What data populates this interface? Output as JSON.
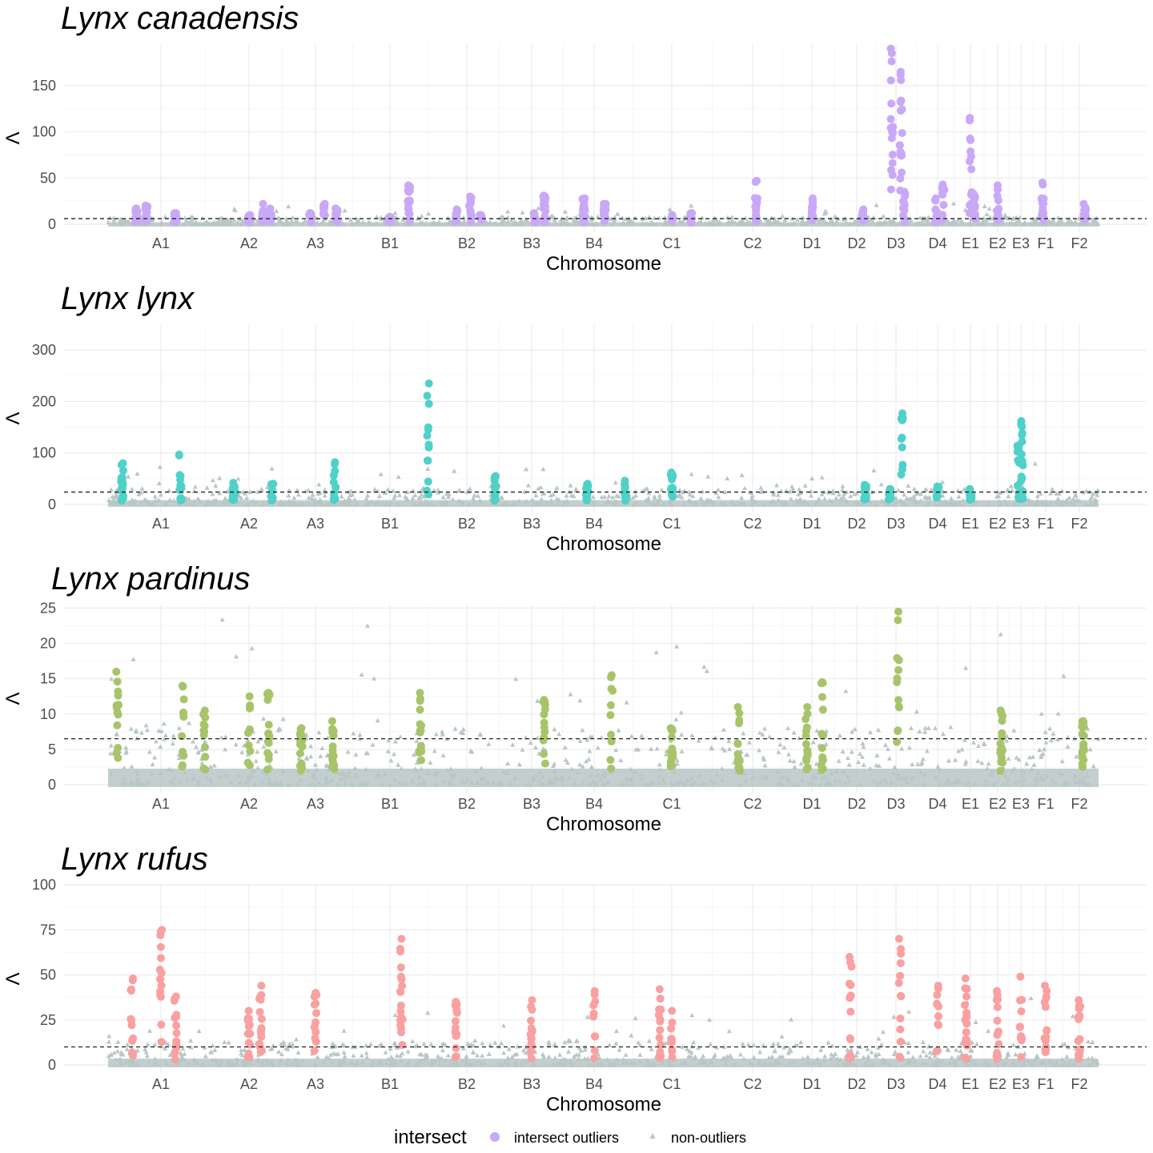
{
  "chart_data": [
    {
      "type": "scatter",
      "title": "Lynx canadensis",
      "xlabel": "Chromosome",
      "ylabel": "Λ",
      "ylim": [
        0,
        195
      ],
      "yticks": [
        0,
        50,
        100,
        150
      ],
      "threshold": 6,
      "outlier_color": "#c9a8f7",
      "categories": [
        "A1",
        "A2",
        "A3",
        "B1",
        "B2",
        "B3",
        "B4",
        "C1",
        "C2",
        "D1",
        "D2",
        "D3",
        "D4",
        "E1",
        "E2",
        "E3",
        "F1",
        "F2"
      ],
      "peaks": [
        {
          "chrom": "A1",
          "pos": -0.5,
          "max": 17
        },
        {
          "chrom": "A1",
          "pos": -0.3,
          "max": 20
        },
        {
          "chrom": "A1",
          "pos": 0.3,
          "max": 12
        },
        {
          "chrom": "A2",
          "pos": 0,
          "max": 10
        },
        {
          "chrom": "A2",
          "pos": 0.35,
          "max": 22
        },
        {
          "chrom": "A2",
          "pos": 0.55,
          "max": 17
        },
        {
          "chrom": "A3",
          "pos": -0.15,
          "max": 12
        },
        {
          "chrom": "A3",
          "pos": 0.25,
          "max": 22
        },
        {
          "chrom": "A3",
          "pos": 0.6,
          "max": 17
        },
        {
          "chrom": "B1",
          "pos": 0,
          "max": 8
        },
        {
          "chrom": "B1",
          "pos": 0.5,
          "max": 42
        },
        {
          "chrom": "B2",
          "pos": -0.3,
          "max": 16
        },
        {
          "chrom": "B2",
          "pos": 0.1,
          "max": 30
        },
        {
          "chrom": "B2",
          "pos": 0.4,
          "max": 10
        },
        {
          "chrom": "B3",
          "pos": 0.1,
          "max": 12
        },
        {
          "chrom": "B3",
          "pos": 0.4,
          "max": 31
        },
        {
          "chrom": "B4",
          "pos": -0.3,
          "max": 28
        },
        {
          "chrom": "B4",
          "pos": 0.3,
          "max": 22
        },
        {
          "chrom": "C1",
          "pos": 0,
          "max": 10
        },
        {
          "chrom": "C1",
          "pos": 0.5,
          "max": 12
        },
        {
          "chrom": "C2",
          "pos": 0.1,
          "max": 47
        },
        {
          "chrom": "D1",
          "pos": 0,
          "max": 28
        },
        {
          "chrom": "D2",
          "pos": 0.3,
          "max": 16
        },
        {
          "chrom": "D3",
          "pos": -0.2,
          "max": 190
        },
        {
          "chrom": "D3",
          "pos": 0.25,
          "max": 165
        },
        {
          "chrom": "D3",
          "pos": 0.4,
          "max": 35
        },
        {
          "chrom": "D4",
          "pos": -0.1,
          "max": 28
        },
        {
          "chrom": "D4",
          "pos": 0.3,
          "max": 43
        },
        {
          "chrom": "E1",
          "pos": 0,
          "max": 115
        },
        {
          "chrom": "E1",
          "pos": 0.25,
          "max": 33
        },
        {
          "chrom": "E2",
          "pos": 0,
          "max": 42
        },
        {
          "chrom": "F1",
          "pos": -0.2,
          "max": 45
        },
        {
          "chrom": "F2",
          "pos": 0.3,
          "max": 22
        }
      ]
    },
    {
      "type": "scatter",
      "title": "Lynx lynx",
      "xlabel": "Chromosome",
      "ylabel": "Λ",
      "ylim": [
        0,
        350
      ],
      "yticks": [
        0,
        100,
        200,
        300
      ],
      "threshold": 24,
      "outlier_color": "#4fd1c9",
      "categories": [
        "A1",
        "A2",
        "A3",
        "B1",
        "B2",
        "B3",
        "B4",
        "C1",
        "C2",
        "D1",
        "D2",
        "D3",
        "D4",
        "E1",
        "E2",
        "E3",
        "F1",
        "F2"
      ],
      "peaks": [
        {
          "chrom": "A1",
          "pos": -0.8,
          "max": 80
        },
        {
          "chrom": "A1",
          "pos": 0.4,
          "max": 97
        },
        {
          "chrom": "A2",
          "pos": -0.4,
          "max": 42
        },
        {
          "chrom": "A2",
          "pos": 0.6,
          "max": 40
        },
        {
          "chrom": "A3",
          "pos": 0.55,
          "max": 82
        },
        {
          "chrom": "B1",
          "pos": 1.0,
          "max": 235
        },
        {
          "chrom": "B2",
          "pos": 0.8,
          "max": 55
        },
        {
          "chrom": "B4",
          "pos": -0.2,
          "max": 40
        },
        {
          "chrom": "B4",
          "pos": 0.9,
          "max": 46
        },
        {
          "chrom": "C1",
          "pos": 0,
          "max": 62
        },
        {
          "chrom": "D2",
          "pos": 0.4,
          "max": 38
        },
        {
          "chrom": "D3",
          "pos": -0.3,
          "max": 30
        },
        {
          "chrom": "D3",
          "pos": 0.3,
          "max": 177
        },
        {
          "chrom": "D4",
          "pos": 0,
          "max": 35
        },
        {
          "chrom": "E1",
          "pos": 0,
          "max": 30
        },
        {
          "chrom": "E3",
          "pos": -0.2,
          "max": 115
        },
        {
          "chrom": "E3",
          "pos": 0.1,
          "max": 162
        }
      ]
    },
    {
      "type": "scatter",
      "title": "Lynx pardinus",
      "xlabel": "Chromosome",
      "ylabel": "Λ",
      "ylim": [
        0,
        25.5
      ],
      "yticks": [
        0,
        5,
        10,
        15,
        20,
        25
      ],
      "threshold": 6.5,
      "outlier_color": "#a8c46b",
      "categories": [
        "A1",
        "A2",
        "A3",
        "B1",
        "B2",
        "B3",
        "B4",
        "C1",
        "C2",
        "D1",
        "D2",
        "D3",
        "D4",
        "E1",
        "E2",
        "E3",
        "F1",
        "F2"
      ],
      "peaks": [
        {
          "chrom": "A1",
          "pos": -0.9,
          "max": 16
        },
        {
          "chrom": "A1",
          "pos": 0.45,
          "max": 14
        },
        {
          "chrom": "A1",
          "pos": 0.9,
          "max": 10.5
        },
        {
          "chrom": "A2",
          "pos": 0,
          "max": 12.5
        },
        {
          "chrom": "A2",
          "pos": 0.5,
          "max": 13
        },
        {
          "chrom": "A3",
          "pos": -0.4,
          "max": 8
        },
        {
          "chrom": "A3",
          "pos": 0.5,
          "max": 9
        },
        {
          "chrom": "B1",
          "pos": 0.8,
          "max": 13
        },
        {
          "chrom": "B3",
          "pos": 0.4,
          "max": 12
        },
        {
          "chrom": "B4",
          "pos": 0.5,
          "max": 15.5
        },
        {
          "chrom": "C1",
          "pos": 0,
          "max": 8
        },
        {
          "chrom": "C2",
          "pos": -0.4,
          "max": 11
        },
        {
          "chrom": "D1",
          "pos": -0.2,
          "max": 11
        },
        {
          "chrom": "D1",
          "pos": 0.4,
          "max": 14.5
        },
        {
          "chrom": "D3",
          "pos": 0.1,
          "max": 24.5
        },
        {
          "chrom": "E2",
          "pos": 0.3,
          "max": 10.5
        },
        {
          "chrom": "F2",
          "pos": 0.2,
          "max": 9
        }
      ]
    },
    {
      "type": "scatter",
      "title": "Lynx rufus",
      "xlabel": "Chromosome",
      "ylabel": "Λ",
      "ylim": [
        0,
        100
      ],
      "yticks": [
        0,
        25,
        50,
        75,
        100
      ],
      "threshold": 10,
      "outlier_color": "#f9a0a0",
      "categories": [
        "A1",
        "A2",
        "A3",
        "B1",
        "B2",
        "B3",
        "B4",
        "C1",
        "C2",
        "D1",
        "D2",
        "D3",
        "D4",
        "E1",
        "E2",
        "E3",
        "F1",
        "F2"
      ],
      "peaks": [
        {
          "chrom": "A1",
          "pos": -0.6,
          "max": 48
        },
        {
          "chrom": "A1",
          "pos": 0,
          "max": 75
        },
        {
          "chrom": "A1",
          "pos": 0.3,
          "max": 38
        },
        {
          "chrom": "A2",
          "pos": 0,
          "max": 30
        },
        {
          "chrom": "A2",
          "pos": 0.3,
          "max": 44
        },
        {
          "chrom": "A3",
          "pos": 0,
          "max": 40
        },
        {
          "chrom": "B1",
          "pos": 0.3,
          "max": 70
        },
        {
          "chrom": "B2",
          "pos": -0.3,
          "max": 35
        },
        {
          "chrom": "B3",
          "pos": 0,
          "max": 36
        },
        {
          "chrom": "B4",
          "pos": 0,
          "max": 41
        },
        {
          "chrom": "C1",
          "pos": -0.3,
          "max": 42
        },
        {
          "chrom": "C1",
          "pos": 0,
          "max": 30
        },
        {
          "chrom": "D2",
          "pos": -0.3,
          "max": 60
        },
        {
          "chrom": "D3",
          "pos": 0.2,
          "max": 70
        },
        {
          "chrom": "D4",
          "pos": 0,
          "max": 44
        },
        {
          "chrom": "E1",
          "pos": -0.3,
          "max": 48
        },
        {
          "chrom": "E2",
          "pos": 0,
          "max": 41
        },
        {
          "chrom": "E3",
          "pos": 0,
          "max": 49
        },
        {
          "chrom": "F1",
          "pos": 0,
          "max": 44
        },
        {
          "chrom": "F2",
          "pos": 0,
          "max": 36
        }
      ]
    }
  ],
  "legend": {
    "title": "intersect",
    "items": [
      {
        "label": "intersect outliers",
        "color": "#c9a8f7",
        "shape": "circle"
      },
      {
        "label": "non-outliers",
        "color": "#b8c6c6",
        "shape": "triangle"
      }
    ]
  },
  "colors": {
    "background_points": "#b8c6c6",
    "threshold_line": "#222222",
    "grid": "#ebebeb"
  }
}
